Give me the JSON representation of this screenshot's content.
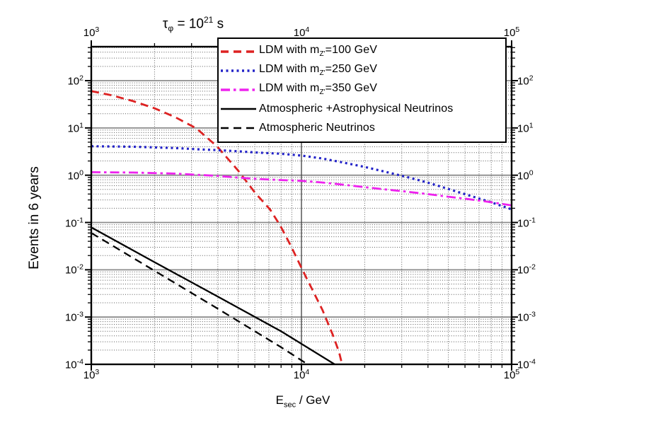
{
  "title": {
    "tau": "τ",
    "tau_sub": "φ",
    "equals": " = 10",
    "exponent": "21",
    "unit": " s"
  },
  "axes": {
    "x_label": {
      "main": "E",
      "sub": "sec",
      "rest": " / GeV"
    },
    "y_label": "Events in 6 years"
  },
  "chart_data": {
    "type": "line",
    "title": "tau_phi = 10^21 s",
    "xlabel": "E_sec / GeV",
    "ylabel": "Events in 6 years",
    "xscale": "log",
    "yscale": "log",
    "xlim": [
      1000,
      100000
    ],
    "ylim": [
      0.0001,
      520
    ],
    "x_tick_exponents": [
      3,
      4,
      5
    ],
    "y_tick_exponents": [
      2,
      1,
      0,
      -1,
      -2,
      -3,
      -4
    ],
    "grid": {
      "major_color": "#8c8c8c",
      "minor_color": "#5a5a5a",
      "minor_style": "dotted"
    },
    "legend_position": "top-right",
    "series": [
      {
        "label": "LDM with m_Z'=100 GeV",
        "label_parts": {
          "pre": "LDM with m",
          "sub": "Z'",
          "post": "=100 GeV"
        },
        "color": "#dd2222",
        "pattern": "dash",
        "points": [
          [
            1000,
            60
          ],
          [
            1250,
            49
          ],
          [
            1580,
            37
          ],
          [
            2000,
            26
          ],
          [
            2500,
            17
          ],
          [
            3160,
            9.8
          ],
          [
            3980,
            4.0
          ],
          [
            5000,
            1.25
          ],
          [
            6030,
            0.42
          ],
          [
            7080,
            0.19
          ],
          [
            7940,
            0.085
          ],
          [
            8910,
            0.032
          ],
          [
            10000,
            0.011
          ],
          [
            11200,
            0.004
          ],
          [
            12600,
            0.0014
          ],
          [
            14100,
            0.00042
          ],
          [
            15100,
            0.00018
          ],
          [
            15600,
            0.0001
          ]
        ]
      },
      {
        "label": "LDM with m_Z'=250 GeV",
        "label_parts": {
          "pre": "LDM with m",
          "sub": "Z'",
          "post": "=250 GeV"
        },
        "color": "#2323c8",
        "pattern": "dot",
        "points": [
          [
            1000,
            4.1
          ],
          [
            1580,
            4.0
          ],
          [
            2510,
            3.75
          ],
          [
            3160,
            3.55
          ],
          [
            3980,
            3.4
          ],
          [
            5010,
            3.2
          ],
          [
            6310,
            3.0
          ],
          [
            7940,
            2.85
          ],
          [
            10000,
            2.6
          ],
          [
            12590,
            2.25
          ],
          [
            15850,
            1.85
          ],
          [
            19950,
            1.5
          ],
          [
            25120,
            1.18
          ],
          [
            31620,
            0.92
          ],
          [
            39810,
            0.7
          ],
          [
            50120,
            0.51
          ],
          [
            63100,
            0.37
          ],
          [
            79430,
            0.27
          ],
          [
            100000,
            0.19
          ]
        ]
      },
      {
        "label": "LDM with m_Z'=350 GeV",
        "label_parts": {
          "pre": "LDM with m",
          "sub": "Z'",
          "post": "=350 GeV"
        },
        "color": "#ee22ee",
        "pattern": "dashdot",
        "points": [
          [
            1000,
            1.16
          ],
          [
            1580,
            1.14
          ],
          [
            2510,
            1.08
          ],
          [
            3980,
            0.97
          ],
          [
            5010,
            0.89
          ],
          [
            6310,
            0.83
          ],
          [
            7940,
            0.79
          ],
          [
            10000,
            0.76
          ],
          [
            12590,
            0.7
          ],
          [
            15850,
            0.63
          ],
          [
            19950,
            0.56
          ],
          [
            25120,
            0.5
          ],
          [
            31620,
            0.45
          ],
          [
            39810,
            0.4
          ],
          [
            50120,
            0.35
          ],
          [
            63100,
            0.31
          ],
          [
            79430,
            0.27
          ],
          [
            100000,
            0.23
          ]
        ]
      },
      {
        "label": "Atmospheric +Astrophysical Neutrinos",
        "label_parts": {
          "pre": "Atmospheric +Astrophysical Neutrinos",
          "sub": "",
          "post": ""
        },
        "color": "#000000",
        "pattern": "solid",
        "points": [
          [
            1000,
            0.079
          ],
          [
            2000,
            0.0145
          ],
          [
            4000,
            0.0027
          ],
          [
            8000,
            0.0005
          ],
          [
            14400,
            0.0001
          ]
        ]
      },
      {
        "label": "Atmospheric Neutrinos",
        "label_parts": {
          "pre": "Atmospheric Neutrinos",
          "sub": "",
          "post": ""
        },
        "color": "#000000",
        "pattern": "dash",
        "points": [
          [
            1000,
            0.06
          ],
          [
            2000,
            0.0095
          ],
          [
            4000,
            0.0015
          ],
          [
            8000,
            0.00023
          ],
          [
            10700,
            0.0001
          ]
        ]
      }
    ]
  }
}
